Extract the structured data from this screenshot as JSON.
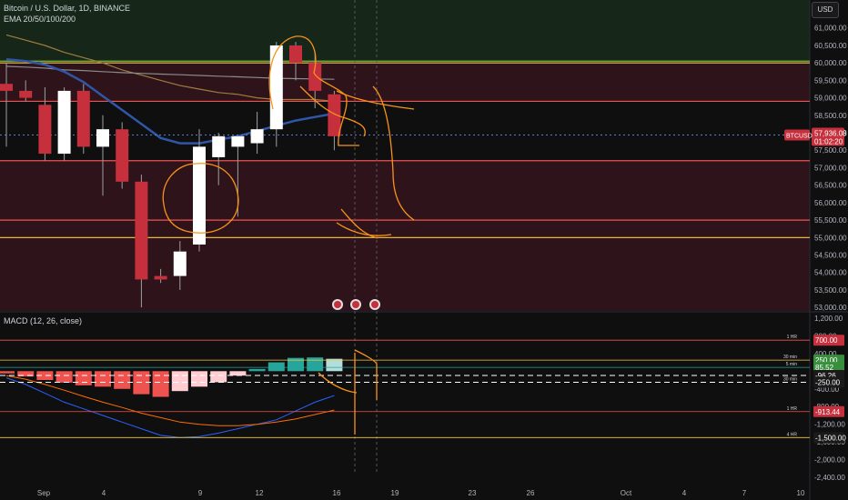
{
  "header": {
    "title": "Bitcoin / U.S. Dollar, 1D, BINANCE",
    "indicator": "EMA 20/50/100/200",
    "currency_button": "USD"
  },
  "macd": {
    "label": "MACD (12, 26, close)"
  },
  "price_badge": {
    "symbol": "BTCUSD",
    "price": "57,936.08",
    "countdown": "01:02:20"
  },
  "colors": {
    "up": "#ffffff",
    "down": "#c62f3c",
    "ema_orange": "#a07c3c",
    "ema_gray": "#8a8a8a",
    "ema_blue": "#2f56a8",
    "ema_green": "#7cb342",
    "drawing_orange": "#f7931a",
    "hist_teal": "#26a69a",
    "hist_red": "#ef5350"
  },
  "icons": [
    "flash-event-icon",
    "us-flag-event-icon",
    "us-flag-event-icon"
  ],
  "chart_data": {
    "type": "candlestick",
    "price_axis": {
      "ylim": [
        52900,
        61800
      ],
      "ticks": [
        "53,000.00",
        "53,500.00",
        "54,000.00",
        "54,500.00",
        "55,000.00",
        "55,500.00",
        "56,000.00",
        "56,500.00",
        "57,000.00",
        "57,500.00",
        "58,000.00",
        "58,500.00",
        "59,000.00",
        "59,500.00",
        "60,000.00",
        "60,500.00",
        "61,000.00"
      ]
    },
    "x_axis": {
      "labels": [
        "Sep",
        "4",
        "9",
        "12",
        "16",
        "19",
        "23",
        "26",
        "Oct",
        "4",
        "7",
        "10"
      ]
    },
    "candles": [
      {
        "date": "Aug 30",
        "o": 59400,
        "h": 60000,
        "l": 57600,
        "c": 59200
      },
      {
        "date": "Aug 31",
        "o": 59200,
        "h": 59500,
        "l": 58900,
        "c": 59000
      },
      {
        "date": "Sep 1",
        "o": 58800,
        "h": 59300,
        "l": 57200,
        "c": 57400
      },
      {
        "date": "Sep 2",
        "o": 57400,
        "h": 59300,
        "l": 57200,
        "c": 59200
      },
      {
        "date": "Sep 3",
        "o": 59200,
        "h": 59400,
        "l": 57400,
        "c": 57600
      },
      {
        "date": "Sep 4",
        "o": 57600,
        "h": 58500,
        "l": 56200,
        "c": 58100
      },
      {
        "date": "Sep 5",
        "o": 58100,
        "h": 58300,
        "l": 56400,
        "c": 56600
      },
      {
        "date": "Sep 6",
        "o": 56600,
        "h": 56800,
        "l": 53000,
        "c": 53800
      },
      {
        "date": "Sep 7",
        "o": 53900,
        "h": 54100,
        "l": 53700,
        "c": 53800
      },
      {
        "date": "Sep 8",
        "o": 53900,
        "h": 54900,
        "l": 53500,
        "c": 54600
      },
      {
        "date": "Sep 9",
        "o": 54800,
        "h": 58100,
        "l": 54600,
        "c": 57600
      },
      {
        "date": "Sep 10",
        "o": 57300,
        "h": 58000,
        "l": 56500,
        "c": 57900
      },
      {
        "date": "Sep 11",
        "o": 57600,
        "h": 57900,
        "l": 55600,
        "c": 57900
      },
      {
        "date": "Sep 12",
        "o": 57700,
        "h": 58600,
        "l": 57400,
        "c": 58100
      },
      {
        "date": "Sep 13",
        "o": 58100,
        "h": 60600,
        "l": 57600,
        "c": 60500
      },
      {
        "date": "Sep 14",
        "o": 60500,
        "h": 60600,
        "l": 59500,
        "c": 60000
      },
      {
        "date": "Sep 15",
        "o": 60000,
        "h": 60300,
        "l": 58700,
        "c": 59200
      },
      {
        "date": "Sep 16",
        "o": 59100,
        "h": 59200,
        "l": 57500,
        "c": 57900
      }
    ],
    "ema": [
      {
        "name": "EMA 20",
        "values": [
          60800,
          60650,
          60500,
          60300,
          60150,
          60000,
          59800,
          59650,
          59500,
          59350,
          59250,
          59150,
          59100,
          59000,
          58950,
          58950,
          58950,
          58900
        ]
      },
      {
        "name": "EMA 50",
        "values": [
          59900,
          59880,
          59850,
          59800,
          59780,
          59750,
          59720,
          59700,
          59680,
          59660,
          59640,
          59620,
          59600,
          59580,
          59560,
          59550,
          59540,
          59530
        ]
      },
      {
        "name": "EMA 100",
        "values": [
          60100,
          60050,
          59950,
          59750,
          59450,
          59050,
          58650,
          58250,
          57850,
          57700,
          57700,
          57800,
          57900,
          58050,
          58200,
          58350,
          58450,
          58550
        ]
      }
    ],
    "levels": [
      {
        "price": 60050,
        "color": "#7cb342"
      },
      {
        "price": 60000,
        "color": "#f7c84a"
      },
      {
        "price": 58900,
        "color": "#ef5350"
      },
      {
        "price": 57200,
        "color": "#ef5350"
      },
      {
        "price": 55500,
        "color": "#ef5350"
      },
      {
        "price": 55000,
        "color": "#f7c84a"
      }
    ],
    "current_price": 57936.08,
    "macd_axis": {
      "ylim": [
        -2500,
        1300
      ],
      "ticks": [
        "1,200.00",
        "800.00",
        "400.00",
        "0.00",
        "-400.00",
        "-800.00",
        "-1,200.00",
        "-1,600.00",
        "-2,000.00",
        "-2,400.00"
      ],
      "hline_labels": [
        "700.00",
        "250.00",
        "85.52",
        "-96.26",
        "-250.00",
        "-913.44",
        "-1,500.00"
      ],
      "hline_tags": [
        "1 HR",
        "30 min",
        "5 min",
        "30 min",
        "1 HR",
        "4 HR"
      ]
    },
    "macd_histogram": [
      -50,
      -120,
      -200,
      -260,
      -320,
      -350,
      -400,
      -520,
      -580,
      -450,
      -350,
      -250,
      -100,
      50,
      200,
      300,
      310,
      280
    ],
    "macd_line": [
      -150,
      -300,
      -500,
      -700,
      -850,
      -1000,
      -1150,
      -1300,
      -1450,
      -1500,
      -1480,
      -1400,
      -1300,
      -1200,
      -1100,
      -900,
      -700,
      -550
    ],
    "signal_line": [
      -100,
      -180,
      -300,
      -430,
      -570,
      -700,
      -820,
      -950,
      -1050,
      -1150,
      -1200,
      -1230,
      -1230,
      -1200,
      -1150,
      -1080,
      -980,
      -880
    ]
  }
}
